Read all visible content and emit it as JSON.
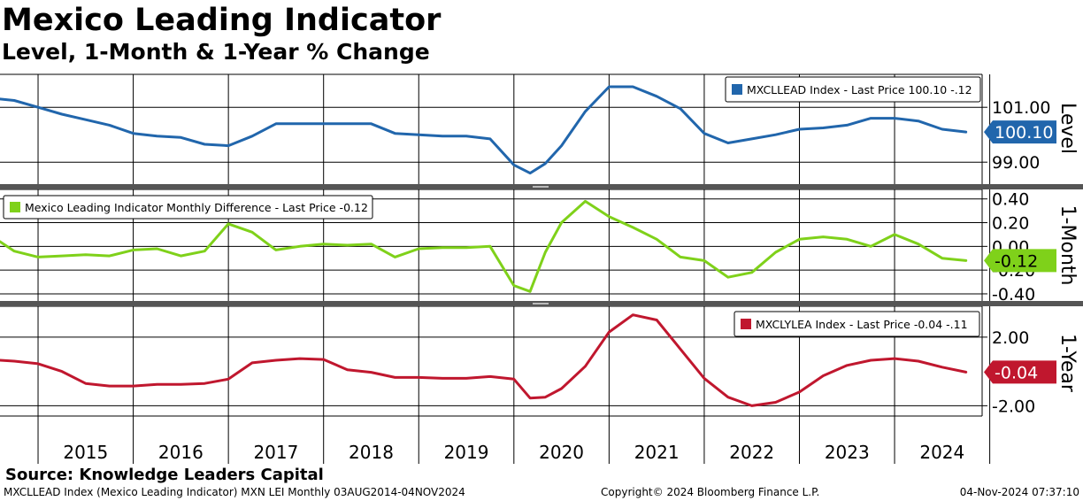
{
  "title": "Mexico Leading Indicator",
  "subtitle": "Level, 1-Month & 1-Year % Change",
  "source": "Source: Knowledge Leaders Capital",
  "footer": {
    "left": "MXCLLEAD Index (Mexico Leading Indicator) MXN LEI  Monthly 03AUG2014-04NOV2024",
    "middle": "Copyright© 2024 Bloomberg Finance L.P.",
    "right": "04-Nov-2024 07:37:10"
  },
  "chart_data": {
    "type": "line",
    "x": [
      2014.6,
      2014.75,
      2015.0,
      2015.25,
      2015.5,
      2015.75,
      2016.0,
      2016.25,
      2016.5,
      2016.75,
      2017.0,
      2017.25,
      2017.5,
      2017.75,
      2018.0,
      2018.25,
      2018.5,
      2018.75,
      2019.0,
      2019.25,
      2019.5,
      2019.75,
      2020.0,
      2020.17,
      2020.33,
      2020.5,
      2020.75,
      2021.0,
      2021.25,
      2021.5,
      2021.75,
      2022.0,
      2022.25,
      2022.5,
      2022.75,
      2023.0,
      2023.25,
      2023.5,
      2023.75,
      2024.0,
      2024.25,
      2024.5,
      2024.75
    ],
    "x_ticks": [
      "2015",
      "2016",
      "2017",
      "2018",
      "2019",
      "2020",
      "2021",
      "2022",
      "2023",
      "2024"
    ],
    "panels": [
      {
        "name": "Level",
        "ylim": [
          98.2,
          102.2
        ],
        "yticks": [
          "101.00",
          "99.00"
        ],
        "ytick_values": [
          101.0,
          99.0
        ],
        "color": "#2166ac",
        "legend": "MXCLLEAD Index - Last Price 100.10  -.12",
        "last_value_label": "100.10",
        "last_value": 100.1,
        "values": [
          101.3,
          101.25,
          101.0,
          100.75,
          100.55,
          100.35,
          100.05,
          99.95,
          99.9,
          99.65,
          99.6,
          99.95,
          100.4,
          100.4,
          100.4,
          100.4,
          100.4,
          100.05,
          100.0,
          99.95,
          99.95,
          99.85,
          98.9,
          98.6,
          98.95,
          99.6,
          100.85,
          101.75,
          101.75,
          101.4,
          100.95,
          100.05,
          99.7,
          99.85,
          100.0,
          100.2,
          100.25,
          100.35,
          100.6,
          100.6,
          100.5,
          100.2,
          100.1
        ]
      },
      {
        "name": "1-Month",
        "ylim": [
          -0.46,
          0.48
        ],
        "yticks": [
          "0.40",
          "0.20",
          "0.00",
          "-0.20",
          "-0.40"
        ],
        "ytick_values": [
          0.4,
          0.2,
          0.0,
          -0.2,
          -0.4
        ],
        "color": "#7fd11a",
        "legend": "Mexico Leading Indicator Monthly Difference - Last Price -0.12",
        "last_value_label": "-0.12",
        "last_value": -0.12,
        "values": [
          0.04,
          -0.04,
          -0.09,
          -0.08,
          -0.07,
          -0.08,
          -0.03,
          -0.02,
          -0.08,
          -0.04,
          0.19,
          0.12,
          -0.03,
          0.0,
          0.02,
          0.01,
          0.02,
          -0.09,
          -0.02,
          -0.01,
          -0.01,
          0.0,
          -0.33,
          -0.38,
          -0.05,
          0.2,
          0.38,
          0.25,
          0.16,
          0.06,
          -0.09,
          -0.12,
          -0.26,
          -0.22,
          -0.05,
          0.06,
          0.08,
          0.06,
          0.0,
          0.1,
          0.02,
          -0.1,
          -0.12
        ]
      },
      {
        "name": "1-Year",
        "ylim": [
          -2.6,
          3.8
        ],
        "yticks": [
          "2.00",
          "-2.00"
        ],
        "ytick_values": [
          2.0,
          -2.0
        ],
        "color": "#c0172e",
        "legend": "MXCLYLEA Index - Last Price -0.04  -.11",
        "last_value_label": "-0.04",
        "last_value": -0.04,
        "values": [
          0.65,
          0.6,
          0.45,
          0.0,
          -0.7,
          -0.85,
          -0.85,
          -0.75,
          -0.75,
          -0.7,
          -0.45,
          0.5,
          0.65,
          0.75,
          0.7,
          0.1,
          -0.05,
          -0.35,
          -0.35,
          -0.4,
          -0.4,
          -0.3,
          -0.45,
          -1.55,
          -1.5,
          -1.0,
          0.3,
          2.3,
          3.3,
          3.0,
          1.3,
          -0.4,
          -1.5,
          -2.0,
          -1.8,
          -1.2,
          -0.25,
          0.35,
          0.65,
          0.75,
          0.6,
          0.25,
          -0.04
        ]
      }
    ],
    "panel_titles": [
      "Level",
      "1-Month",
      "1-Year"
    ]
  }
}
